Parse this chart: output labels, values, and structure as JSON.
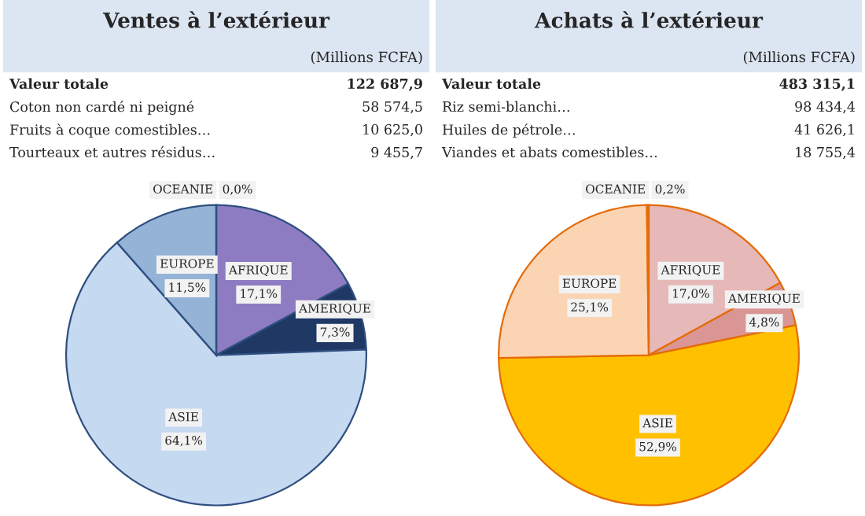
{
  "chart_data": [
    {
      "type": "pie",
      "title": "Ventes à l’extérieur",
      "subtitle": "(Millions FCFA)",
      "annotations": [
        "Valeur totale",
        "122 687,9",
        "Coton non cardé ni peigné",
        "58 574,5",
        "Fruits à coque comestibles…",
        "10 625,0",
        "Tourteaux et autres résidus…",
        "9 455,7"
      ],
      "categories": [
        "AFRIQUE",
        "AMERIQUE",
        "ASIE",
        "EUROPE",
        "OCEANIE"
      ],
      "values": [
        17.1,
        7.3,
        64.1,
        11.5,
        0.0
      ],
      "value_labels": [
        "17,1%",
        "7,3%",
        "64,1%",
        "11,5%",
        "0,0%"
      ],
      "colors": [
        "#8e7cc3",
        "#1f3864",
        "#c5d9f1",
        "#95b3d7",
        "#4f81bd"
      ]
    },
    {
      "type": "pie",
      "title": "Achats à l’extérieur",
      "subtitle": "(Millions FCFA)",
      "annotations": [
        "Valeur totale",
        "483 315,1",
        "Riz semi-blanchi…",
        "98 434,4",
        "Huiles de pétrole…",
        "41 626,1",
        "Viandes et abats comestibles…",
        "18 755,4"
      ],
      "categories": [
        "AFRIQUE",
        "AMERIQUE",
        "ASIE",
        "EUROPE",
        "OCEANIE"
      ],
      "values": [
        17.0,
        4.8,
        52.9,
        25.1,
        0.2
      ],
      "value_labels": [
        "17,0%",
        "4,8%",
        "52,9%",
        "25,1%",
        "0,2%"
      ],
      "colors": [
        "#e6b8b7",
        "#d99694",
        "#ffc000",
        "#fbd4b4",
        "#e46c0a"
      ]
    }
  ]
}
